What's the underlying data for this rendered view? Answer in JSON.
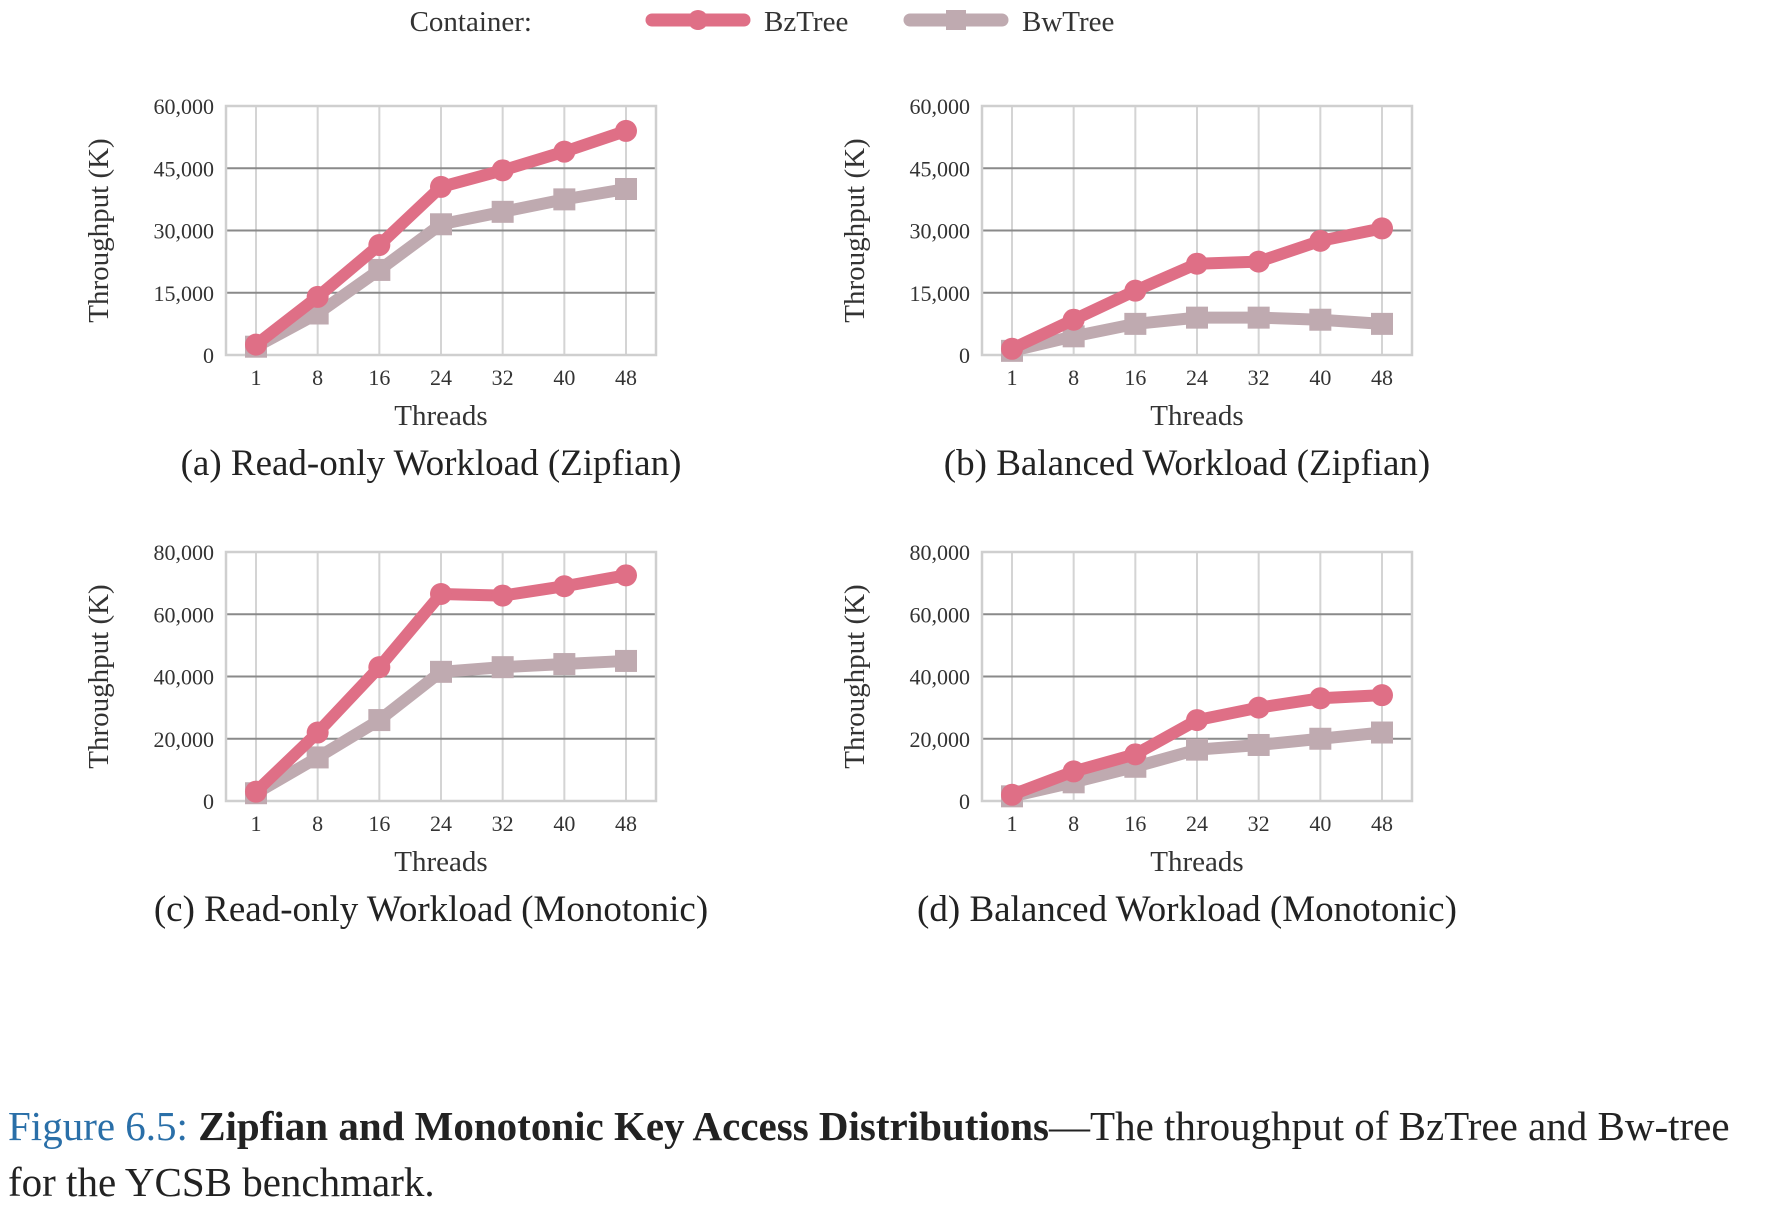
{
  "legend": {
    "title": "Container:",
    "position": "top-center",
    "series": [
      {
        "name": "BzTree",
        "color": "#df6f86",
        "marker": "circle"
      },
      {
        "name": "BwTree",
        "color": "#bfaab0",
        "marker": "square"
      }
    ]
  },
  "chart_data": [
    {
      "type": "line",
      "title": "(a) Read-only Workload (Zipfian)",
      "xlabel": "Threads",
      "ylabel": "Throughput (K)",
      "categories": [
        "1",
        "8",
        "16",
        "24",
        "32",
        "40",
        "48"
      ],
      "yticks": [
        "0",
        "15,000",
        "30,000",
        "45,000",
        "60,000"
      ],
      "ylim": [
        0,
        60000
      ],
      "grid": true,
      "series": [
        {
          "name": "BzTree",
          "values": [
            2500,
            14000,
            26500,
            40500,
            44500,
            49000,
            54000
          ]
        },
        {
          "name": "BwTree",
          "values": [
            2000,
            10000,
            20500,
            31500,
            34500,
            37500,
            40000
          ]
        }
      ]
    },
    {
      "type": "line",
      "title": "(b) Balanced Workload (Zipfian)",
      "xlabel": "Threads",
      "ylabel": "Throughput (K)",
      "categories": [
        "1",
        "8",
        "16",
        "24",
        "32",
        "40",
        "48"
      ],
      "yticks": [
        "0",
        "15,000",
        "30,000",
        "45,000",
        "60,000"
      ],
      "ylim": [
        0,
        60000
      ],
      "grid": true,
      "series": [
        {
          "name": "BzTree",
          "values": [
            1500,
            8500,
            15500,
            22000,
            22500,
            27500,
            30500
          ]
        },
        {
          "name": "BwTree",
          "values": [
            1000,
            4500,
            7500,
            9000,
            9000,
            8500,
            7500
          ]
        }
      ]
    },
    {
      "type": "line",
      "title": "(c) Read-only Workload (Monotonic)",
      "xlabel": "Threads",
      "ylabel": "Throughput (K)",
      "categories": [
        "1",
        "8",
        "16",
        "24",
        "32",
        "40",
        "48"
      ],
      "yticks": [
        "0",
        "20,000",
        "40,000",
        "60,000",
        "80,000"
      ],
      "ylim": [
        0,
        80000
      ],
      "grid": true,
      "series": [
        {
          "name": "BzTree",
          "values": [
            3000,
            22000,
            43000,
            66500,
            66000,
            69000,
            72500
          ]
        },
        {
          "name": "BwTree",
          "values": [
            2500,
            14000,
            26000,
            41500,
            43000,
            44000,
            45000
          ]
        }
      ]
    },
    {
      "type": "line",
      "title": "(d) Balanced Workload (Monotonic)",
      "xlabel": "Threads",
      "ylabel": "Throughput (K)",
      "categories": [
        "1",
        "8",
        "16",
        "24",
        "32",
        "40",
        "48"
      ],
      "yticks": [
        "0",
        "20,000",
        "40,000",
        "60,000",
        "80,000"
      ],
      "ylim": [
        0,
        80000
      ],
      "grid": true,
      "series": [
        {
          "name": "BzTree",
          "values": [
            2000,
            9500,
            15000,
            26000,
            30000,
            33000,
            34000
          ]
        },
        {
          "name": "BwTree",
          "values": [
            1500,
            6000,
            11000,
            16500,
            18000,
            20000,
            22000
          ]
        }
      ]
    }
  ],
  "caption": {
    "number": "Figure 6.5:",
    "bold": "Zipfian and Monotonic Key Access Distributions",
    "text": "—The throughput of BzTree and Bw-tree for the YCSB benchmark."
  }
}
